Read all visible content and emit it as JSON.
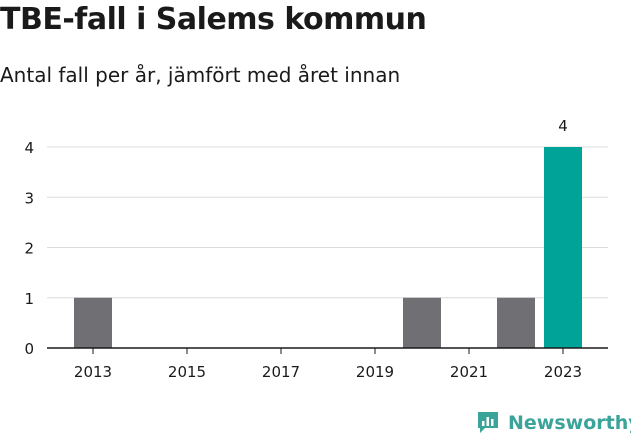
{
  "title": "TBE-fall i Salems kommun",
  "subtitle": "Antal fall per år, jämfört med året innan",
  "brand": "Newsworthy",
  "colors": {
    "bar": "#706f74",
    "highlight": "#00a398",
    "grid": "#dcdcdc",
    "axis": "#1a1a1a",
    "brand": "#3aa39a"
  },
  "chart_data": {
    "type": "bar",
    "categories": [
      "2013",
      "2014",
      "2015",
      "2016",
      "2017",
      "2018",
      "2019",
      "2020",
      "2021",
      "2022",
      "2023"
    ],
    "values": [
      1,
      0,
      0,
      0,
      0,
      0,
      0,
      1,
      0,
      1,
      4
    ],
    "highlight": "2023",
    "data_labels": {
      "2023": "4"
    },
    "xticks": [
      "2013",
      "2015",
      "2017",
      "2019",
      "2021",
      "2023"
    ],
    "yticks": [
      0,
      1,
      2,
      3,
      4
    ],
    "ylim": [
      0,
      4
    ],
    "grid": true
  }
}
